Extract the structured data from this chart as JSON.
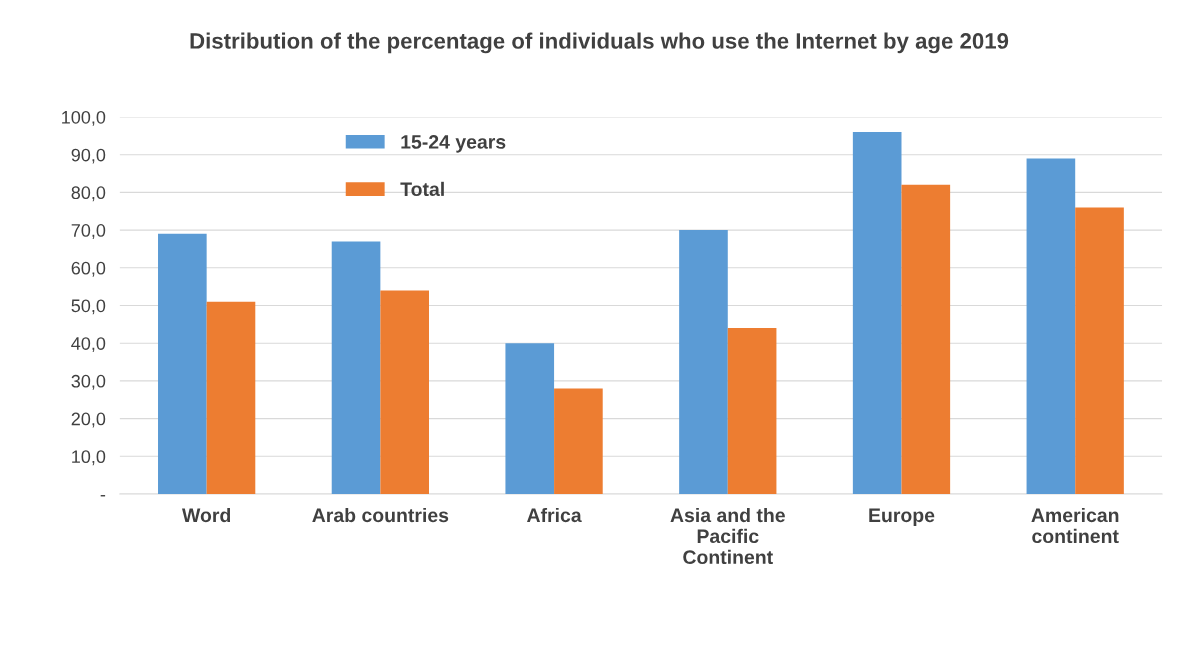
{
  "chart_data": {
    "type": "bar",
    "title": "Distribution of the percentage of individuals who use the Internet by age 2019",
    "categories": [
      "Word",
      "Arab countries",
      "Africa",
      "Asia and the Pacific Continent",
      "Europe",
      "American continent"
    ],
    "series": [
      {
        "name": "15-24 years",
        "color": "#5b9bd5",
        "values": [
          69,
          67,
          40,
          70,
          96,
          89
        ]
      },
      {
        "name": "Total",
        "color": "#ed7d31",
        "values": [
          51,
          54,
          28,
          44,
          82,
          76
        ]
      }
    ],
    "ylim": [
      0,
      100
    ],
    "yticks": [
      {
        "value": 0,
        "label": "-"
      },
      {
        "value": 10,
        "label": "10,0"
      },
      {
        "value": 20,
        "label": "20,0"
      },
      {
        "value": 30,
        "label": "30,0"
      },
      {
        "value": 40,
        "label": "40,0"
      },
      {
        "value": 50,
        "label": "50,0"
      },
      {
        "value": 60,
        "label": "60,0"
      },
      {
        "value": 70,
        "label": "70,0"
      },
      {
        "value": 80,
        "label": "80,0"
      },
      {
        "value": 90,
        "label": "90,0"
      },
      {
        "value": 100,
        "label": "100,0"
      }
    ],
    "grid": "y",
    "legend": "top left"
  }
}
